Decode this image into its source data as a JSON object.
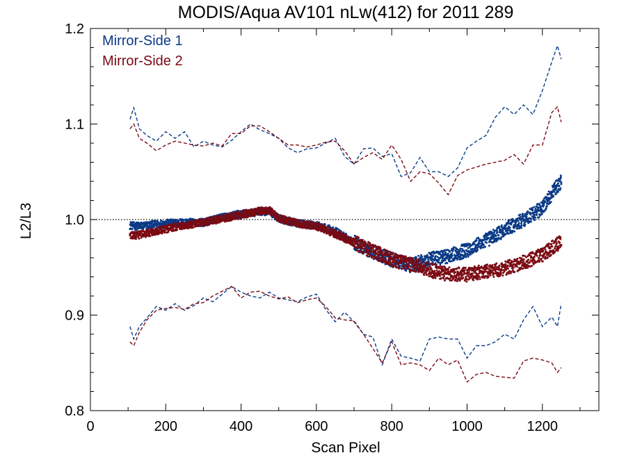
{
  "chart_data": {
    "type": "scatter",
    "title": "MODIS/Aqua AV101 nLw(412) for 2011 289",
    "xlabel": "Scan Pixel",
    "ylabel": "L2/L3",
    "xlim": [
      0,
      1350
    ],
    "ylim": [
      0.8,
      1.2
    ],
    "x_ticks": [
      0,
      200,
      400,
      600,
      800,
      1000,
      1200
    ],
    "x_tick_labels": [
      "0",
      "200",
      "400",
      "600",
      "800",
      "1000",
      "1200"
    ],
    "y_ticks": [
      0.8,
      0.9,
      1.0,
      1.1,
      1.2
    ],
    "y_tick_labels": [
      "0.8",
      "0.9",
      "1.0",
      "1.1",
      "1.2"
    ],
    "reference_line": 1.0,
    "legend_position": "top-left",
    "series": [
      {
        "name": "Mirror-Side 1",
        "color": "#0b3a86",
        "mean": {
          "x": [
            105,
            120,
            150,
            200,
            250,
            300,
            350,
            400,
            450,
            475,
            500,
            550,
            600,
            650,
            700,
            750,
            800,
            850,
            900,
            950,
            1000,
            1050,
            1100,
            1150,
            1200,
            1230,
            1250
          ],
          "y": [
            0.994,
            0.993,
            0.994,
            0.996,
            0.997,
            0.997,
            1.002,
            1.006,
            1.008,
            1.009,
            1.001,
            0.996,
            0.994,
            0.988,
            0.976,
            0.966,
            0.958,
            0.952,
            0.958,
            0.962,
            0.968,
            0.978,
            0.989,
            1.0,
            1.012,
            1.03,
            1.04
          ]
        },
        "upper": {
          "x": [
            105,
            115,
            130,
            150,
            175,
            200,
            225,
            250,
            275,
            300,
            325,
            350,
            375,
            400,
            425,
            450,
            475,
            500,
            525,
            550,
            575,
            600,
            625,
            650,
            675,
            700,
            725,
            750,
            775,
            800,
            825,
            850,
            875,
            900,
            925,
            950,
            975,
            1000,
            1025,
            1050,
            1075,
            1100,
            1125,
            1150,
            1175,
            1200,
            1225,
            1240,
            1250
          ],
          "y": [
            1.105,
            1.117,
            1.095,
            1.088,
            1.082,
            1.092,
            1.085,
            1.092,
            1.076,
            1.082,
            1.078,
            1.076,
            1.083,
            1.092,
            1.1,
            1.094,
            1.09,
            1.085,
            1.075,
            1.07,
            1.074,
            1.075,
            1.08,
            1.085,
            1.066,
            1.058,
            1.074,
            1.075,
            1.066,
            1.069,
            1.045,
            1.049,
            1.065,
            1.05,
            1.05,
            1.045,
            1.054,
            1.075,
            1.082,
            1.088,
            1.107,
            1.118,
            1.11,
            1.12,
            1.11,
            1.135,
            1.165,
            1.182,
            1.168
          ]
        },
        "lower": {
          "x": [
            105,
            115,
            130,
            150,
            175,
            200,
            225,
            250,
            275,
            300,
            325,
            350,
            375,
            400,
            425,
            450,
            475,
            500,
            525,
            550,
            575,
            600,
            625,
            650,
            675,
            700,
            725,
            750,
            775,
            800,
            825,
            850,
            875,
            900,
            925,
            950,
            975,
            1000,
            1025,
            1050,
            1075,
            1100,
            1125,
            1150,
            1175,
            1200,
            1225,
            1240,
            1250
          ],
          "y": [
            0.888,
            0.875,
            0.888,
            0.897,
            0.909,
            0.905,
            0.912,
            0.905,
            0.91,
            0.918,
            0.914,
            0.922,
            0.93,
            0.924,
            0.92,
            0.918,
            0.924,
            0.918,
            0.916,
            0.914,
            0.919,
            0.922,
            0.906,
            0.893,
            0.903,
            0.893,
            0.88,
            0.877,
            0.848,
            0.875,
            0.857,
            0.855,
            0.852,
            0.875,
            0.877,
            0.875,
            0.875,
            0.855,
            0.868,
            0.868,
            0.872,
            0.88,
            0.875,
            0.895,
            0.909,
            0.888,
            0.898,
            0.888,
            0.912
          ]
        }
      },
      {
        "name": "Mirror-Side 2",
        "color": "#7a0a12",
        "mean": {
          "x": [
            105,
            120,
            150,
            200,
            250,
            300,
            350,
            400,
            450,
            475,
            500,
            550,
            600,
            650,
            700,
            750,
            800,
            850,
            900,
            950,
            1000,
            1050,
            1100,
            1150,
            1200,
            1230,
            1250
          ],
          "y": [
            0.984,
            0.983,
            0.986,
            0.99,
            0.994,
            0.997,
            1.001,
            1.005,
            1.009,
            1.01,
            1.001,
            0.996,
            0.993,
            0.985,
            0.976,
            0.967,
            0.958,
            0.953,
            0.947,
            0.943,
            0.942,
            0.946,
            0.949,
            0.955,
            0.963,
            0.972,
            0.976
          ]
        },
        "upper": {
          "x": [
            105,
            115,
            130,
            150,
            175,
            200,
            225,
            250,
            275,
            300,
            325,
            350,
            375,
            400,
            425,
            450,
            475,
            500,
            525,
            550,
            575,
            600,
            625,
            650,
            675,
            700,
            725,
            750,
            775,
            800,
            825,
            850,
            875,
            900,
            925,
            950,
            975,
            1000,
            1025,
            1050,
            1075,
            1100,
            1125,
            1150,
            1175,
            1200,
            1225,
            1240,
            1250
          ],
          "y": [
            1.095,
            1.1,
            1.085,
            1.08,
            1.072,
            1.078,
            1.082,
            1.08,
            1.078,
            1.077,
            1.08,
            1.077,
            1.09,
            1.09,
            1.098,
            1.098,
            1.092,
            1.085,
            1.078,
            1.078,
            1.076,
            1.078,
            1.081,
            1.082,
            1.072,
            1.058,
            1.065,
            1.07,
            1.063,
            1.078,
            1.063,
            1.04,
            1.05,
            1.048,
            1.038,
            1.026,
            1.046,
            1.052,
            1.055,
            1.058,
            1.06,
            1.062,
            1.068,
            1.058,
            1.078,
            1.078,
            1.112,
            1.118,
            1.102
          ]
        },
        "lower": {
          "x": [
            105,
            115,
            130,
            150,
            175,
            200,
            225,
            250,
            275,
            300,
            325,
            350,
            375,
            400,
            425,
            450,
            475,
            500,
            525,
            550,
            575,
            600,
            625,
            650,
            675,
            700,
            725,
            750,
            775,
            800,
            825,
            850,
            875,
            900,
            925,
            950,
            975,
            1000,
            1025,
            1050,
            1075,
            1100,
            1125,
            1150,
            1175,
            1200,
            1225,
            1240,
            1250
          ],
          "y": [
            0.872,
            0.868,
            0.882,
            0.895,
            0.905,
            0.907,
            0.908,
            0.906,
            0.912,
            0.913,
            0.92,
            0.925,
            0.93,
            0.918,
            0.924,
            0.925,
            0.92,
            0.917,
            0.919,
            0.913,
            0.916,
            0.918,
            0.909,
            0.897,
            0.895,
            0.894,
            0.88,
            0.865,
            0.85,
            0.872,
            0.848,
            0.85,
            0.848,
            0.842,
            0.855,
            0.848,
            0.853,
            0.83,
            0.838,
            0.84,
            0.836,
            0.835,
            0.834,
            0.852,
            0.855,
            0.853,
            0.85,
            0.84,
            0.845
          ]
        }
      }
    ]
  }
}
